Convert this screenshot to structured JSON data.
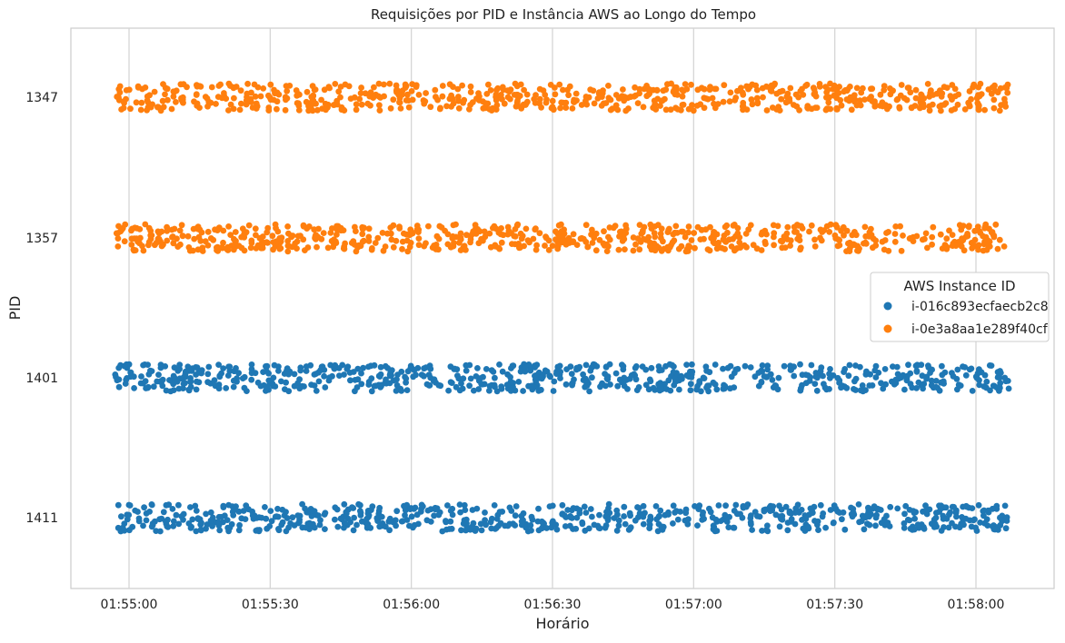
{
  "chart_data": {
    "type": "scatter",
    "title": "Requisições por PID e Instância AWS ao Longo do Tempo",
    "xlabel": "Horário",
    "ylabel": "PID",
    "x_ticks": [
      "01:55:00",
      "01:55:30",
      "01:56:00",
      "01:56:30",
      "01:57:00",
      "01:57:30",
      "01:58:00"
    ],
    "x_range": [
      "01:54:56",
      "01:58:08"
    ],
    "categories": [
      "1347",
      "1357",
      "1401",
      "1411"
    ],
    "grid": "vertical",
    "legend": {
      "title": "AWS Instance ID",
      "placement": "right"
    },
    "series": [
      {
        "name": "i-016c893ecfaecb2c8",
        "color": "#1f77b4",
        "pids": [
          "1401",
          "1411"
        ],
        "points_per_pid": 700
      },
      {
        "name": "i-0e3a8aa1e289f40cf",
        "color": "#ff7f0e",
        "pids": [
          "1347",
          "1357"
        ],
        "points_per_pid": 700
      }
    ],
    "note_jitter": "strip plot with vertical jitter"
  }
}
